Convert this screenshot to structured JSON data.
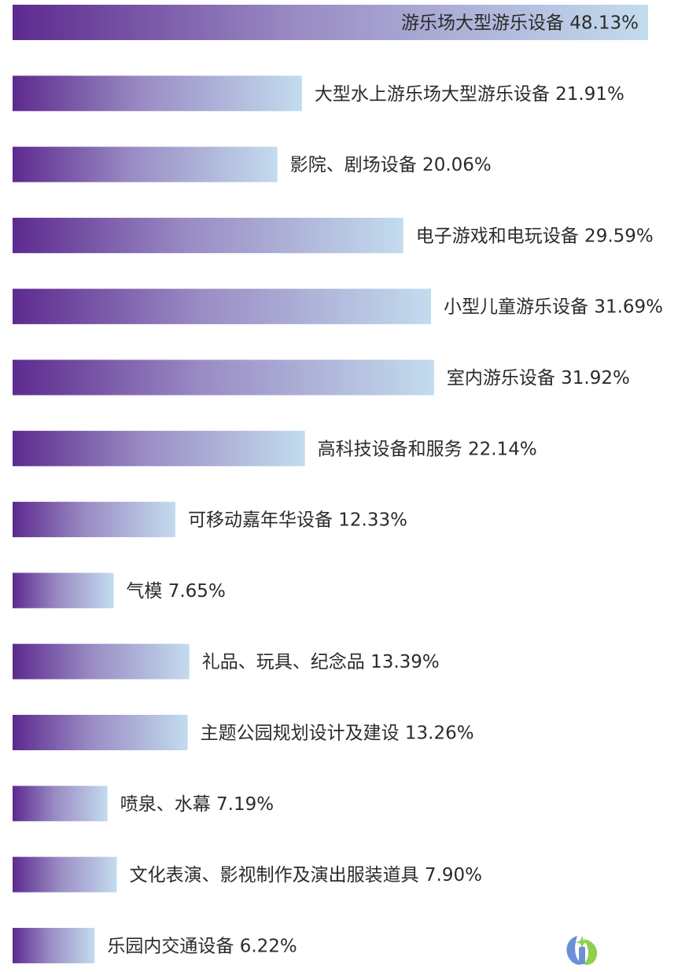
{
  "chart_data": {
    "type": "bar",
    "orientation": "horizontal",
    "categories": [
      "游乐场大型游乐设备",
      "大型水上游乐场大型游乐设备",
      "影院、剧场设备",
      "电子游戏和电玩设备",
      "小型儿童游乐设备",
      "室内游乐设备",
      "高科技设备和服务",
      "可移动嘉年华设备",
      "气模",
      "礼品、玩具、纪念品",
      "主题公园规划设计及建设",
      "喷泉、水幕",
      "文化表演、影视制作及演出服装道具",
      "乐园内交通设备"
    ],
    "values": [
      48.13,
      21.91,
      20.06,
      29.59,
      31.69,
      31.92,
      22.14,
      12.33,
      7.65,
      13.39,
      13.26,
      7.19,
      7.9,
      6.22
    ],
    "data_labels": [
      "游乐场大型游乐设备 48.13%",
      "大型水上游乐场大型游乐设备 21.91%",
      "影院、剧场设备 20.06%",
      "电子游戏和电玩设备 29.59%",
      "小型儿童游乐设备 31.69%",
      "室内游乐设备 31.92%",
      "高科技设备和服务 22.14%",
      "可移动嘉年华设备 12.33%",
      "气模 7.65%",
      "礼品、玩具、纪念品 13.39%",
      "主题公园规划设计及建设 13.26%",
      "喷泉、水幕 7.19%",
      "文化表演、影视制作及演出服装道具 7.90%",
      "乐园内交通设备 6.22%"
    ],
    "unit": "%",
    "xlim": [
      0,
      48.13
    ],
    "grid": false,
    "legend": "none",
    "title": "",
    "xlabel": "",
    "ylabel": ""
  },
  "colors": {
    "bar_start": "#5d2a8f",
    "bar_mid": "#9a8cc4",
    "bar_end": "#c3dcee",
    "label": "#2b2b2b",
    "logo_blue": "#6c8fd8",
    "logo_green": "#8fd14f"
  },
  "logo_icon": "brand-logo-icon"
}
